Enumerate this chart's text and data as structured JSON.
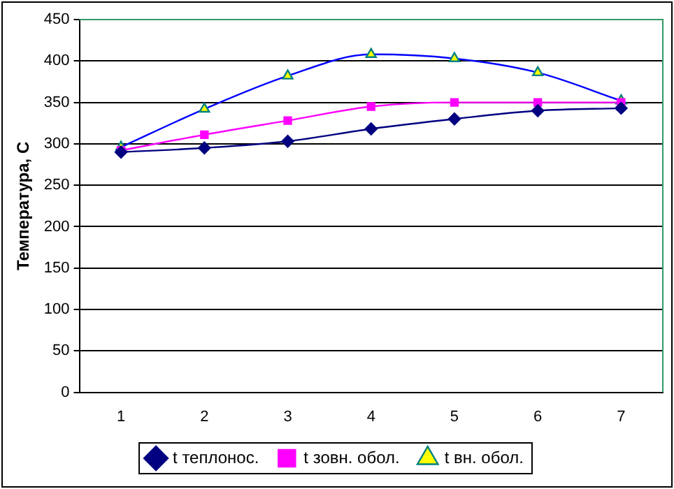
{
  "chart_data": {
    "type": "line",
    "ylabel": "Температура, С",
    "categories": [
      "1",
      "2",
      "3",
      "4",
      "5",
      "6",
      "7"
    ],
    "series": [
      {
        "name": "t теплонос.",
        "color": "#000080",
        "marker": "diamond",
        "values": [
          290,
          295,
          303,
          318,
          330,
          340,
          343
        ]
      },
      {
        "name": "t зовн. обол.",
        "color": "#ff00ff",
        "marker": "square",
        "values": [
          292,
          311,
          328,
          345,
          350,
          350,
          350
        ]
      },
      {
        "name": "t вн. обол.",
        "color": "#0000ff",
        "marker": "triangle",
        "values": [
          296,
          342,
          382,
          408,
          403,
          386,
          352
        ]
      }
    ],
    "ylim": [
      0,
      450
    ],
    "yticks": [
      0,
      50,
      100,
      150,
      200,
      250,
      300,
      350,
      400,
      450
    ],
    "grid": "y",
    "legend": "bottom"
  }
}
